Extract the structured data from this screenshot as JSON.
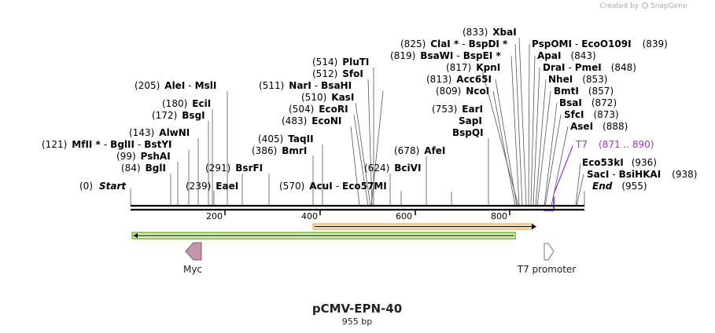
{
  "credit": {
    "text": "Created by",
    "brand": "SnapGene"
  },
  "title": "pCMV-EPN-40",
  "subtitle": "955 bp",
  "sequence_length": 955,
  "ruler_ticks": [
    {
      "pos": 200,
      "label": "200"
    },
    {
      "pos": 400,
      "label": "400"
    },
    {
      "pos": 600,
      "label": "600"
    },
    {
      "pos": 800,
      "label": "800"
    }
  ],
  "sites": [
    {
      "pos": "(0)",
      "names": [
        {
          "t": "Start",
          "i": true
        }
      ]
    },
    {
      "pos": "(84)",
      "names": [
        {
          "t": "BglI"
        }
      ]
    },
    {
      "pos": "(99)",
      "names": [
        {
          "t": "PshAI"
        }
      ]
    },
    {
      "pos": "(121)",
      "names": [
        {
          "t": "MfII *"
        },
        {
          "t": "BglII"
        },
        {
          "t": "BstYI"
        }
      ]
    },
    {
      "pos": "(143)",
      "names": [
        {
          "t": "AlwNI"
        }
      ]
    },
    {
      "pos": "(172)",
      "names": [
        {
          "t": "BsgI"
        }
      ]
    },
    {
      "pos": "(180)",
      "names": [
        {
          "t": "EciI"
        }
      ]
    },
    {
      "pos": "(205)",
      "names": [
        {
          "t": "AleI"
        },
        {
          "t": "MslI"
        }
      ]
    },
    {
      "pos": "(239)",
      "names": [
        {
          "t": "EaeI"
        }
      ]
    },
    {
      "pos": "(291)",
      "names": [
        {
          "t": "BsrFI"
        }
      ]
    },
    {
      "pos": "(386)",
      "names": [
        {
          "t": "BmrI"
        }
      ]
    },
    {
      "pos": "(405)",
      "names": [
        {
          "t": "TaqII"
        }
      ]
    },
    {
      "pos": "(483)",
      "names": [
        {
          "t": "EcoNI"
        }
      ]
    },
    {
      "pos": "(504)",
      "names": [
        {
          "t": "EcoRI"
        }
      ]
    },
    {
      "pos": "(510)",
      "names": [
        {
          "t": "KasI"
        }
      ]
    },
    {
      "pos": "(511)",
      "names": [
        {
          "t": "NarI"
        },
        {
          "t": "BsaHI"
        }
      ]
    },
    {
      "pos": "(512)",
      "names": [
        {
          "t": "SfoI"
        }
      ]
    },
    {
      "pos": "(514)",
      "names": [
        {
          "t": "PluTI"
        }
      ]
    },
    {
      "pos": "(570)",
      "names": [
        {
          "t": "AcuI"
        },
        {
          "t": "Eco57MI"
        }
      ]
    },
    {
      "pos": "(624)",
      "names": [
        {
          "t": "BciVI"
        }
      ]
    },
    {
      "pos": "(678)",
      "names": [
        {
          "t": "AfeI"
        }
      ]
    },
    {
      "pos": "(753)",
      "names": [
        {
          "t": "EarI"
        }
      ]
    },
    {
      "pos": "",
      "names": [
        {
          "t": "SapI"
        }
      ]
    },
    {
      "pos": "",
      "names": [
        {
          "t": "BspQI"
        }
      ]
    },
    {
      "pos": "(809)",
      "names": [
        {
          "t": "NcoI"
        }
      ]
    },
    {
      "pos": "(813)",
      "names": [
        {
          "t": "Acc65I"
        }
      ]
    },
    {
      "pos": "(817)",
      "names": [
        {
          "t": "KpnI"
        }
      ]
    },
    {
      "pos": "(819)",
      "names": [
        {
          "t": "BsaWI"
        },
        {
          "t": "BspEI *"
        }
      ]
    },
    {
      "pos": "(825)",
      "names": [
        {
          "t": "ClaI *"
        },
        {
          "t": "BspDI *"
        }
      ]
    },
    {
      "pos": "(833)",
      "names": [
        {
          "t": "XbaI"
        }
      ]
    },
    {
      "pos": "(839)",
      "names": [
        {
          "t": "PspOMI"
        },
        {
          "t": "EcoO109I"
        }
      ]
    },
    {
      "pos": "(843)",
      "names": [
        {
          "t": "ApaI"
        }
      ]
    },
    {
      "pos": "(848)",
      "names": [
        {
          "t": "DraI"
        },
        {
          "t": "PmeI"
        }
      ]
    },
    {
      "pos": "(853)",
      "names": [
        {
          "t": "NheI"
        }
      ]
    },
    {
      "pos": "(857)",
      "names": [
        {
          "t": "BmtI"
        }
      ]
    },
    {
      "pos": "(872)",
      "names": [
        {
          "t": "BsaI"
        }
      ]
    },
    {
      "pos": "(873)",
      "names": [
        {
          "t": "SfcI"
        }
      ]
    },
    {
      "pos": "(888)",
      "names": [
        {
          "t": "AseI"
        }
      ]
    },
    {
      "pos": "(936)",
      "names": [
        {
          "t": "Eco53kI"
        }
      ]
    },
    {
      "pos": "(938)",
      "names": [
        {
          "t": "SacI"
        },
        {
          "t": "BsiHKAI"
        }
      ]
    },
    {
      "pos": "(955)",
      "names": [
        {
          "t": "End",
          "i": true
        }
      ]
    }
  ],
  "primer": {
    "name": "T7",
    "range": "(871 .. 890)",
    "color": "#9b30d9"
  },
  "features": {
    "myc": {
      "label": "Myc",
      "color": "#c496ad"
    },
    "t7_promoter": {
      "label": "T7 promoter",
      "color": "#ffffff"
    },
    "green_arrow": {
      "color": "#55aa11",
      "start": 4,
      "end": 813
    },
    "orange_arrow": {
      "color": "#e8a23a",
      "start": 390,
      "end": 853
    }
  },
  "colors": {
    "ink": "#000000"
  }
}
